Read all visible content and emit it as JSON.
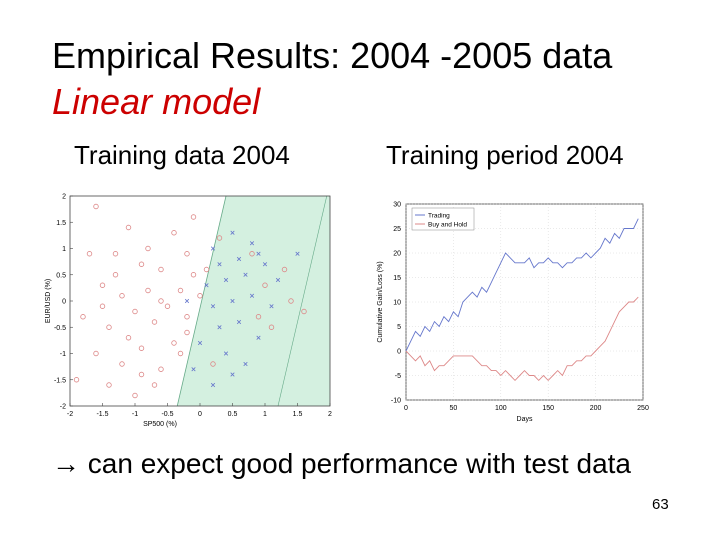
{
  "slide": {
    "title": "Empirical Results: 2004 -2005 data",
    "subtitle": "Linear model",
    "left_label": "Training data 2004",
    "right_label": "Training period 2004",
    "conclusion": "→ can expect good performance with test data",
    "page_number": "63"
  },
  "colors": {
    "subtitle": "#cc0000",
    "region": "#d4f0e0",
    "trading": "#6677cc",
    "buyhold": "#dd8888"
  },
  "chart_data": [
    {
      "type": "scatter",
      "title": "",
      "xlabel": "SP500 (%)",
      "ylabel": "EUR/USD (%)",
      "xlim": [
        -2,
        2
      ],
      "ylim": [
        -2,
        2
      ],
      "xticks": [
        "-2",
        "-1.5",
        "-1",
        "-0.5",
        "0",
        "0.5",
        "1",
        "1.5",
        "2"
      ],
      "yticks": [
        "-2",
        "-1.5",
        "-1",
        "-0.5",
        "0",
        "0.5",
        "1",
        "1.5",
        "2"
      ],
      "decision_boundary": [
        [
          -0.35,
          -2
        ],
        [
          0.4,
          2
        ]
      ],
      "second_boundary": [
        [
          1.2,
          -2
        ],
        [
          1.95,
          2
        ]
      ],
      "series": [
        {
          "marker": "circle",
          "color": "#dd8888",
          "points": [
            [
              -1.6,
              1.8
            ],
            [
              -1.1,
              1.4
            ],
            [
              -1.3,
              0.9
            ],
            [
              -0.9,
              0.7
            ],
            [
              -0.4,
              1.3
            ],
            [
              -0.2,
              0.9
            ],
            [
              -1.5,
              0.3
            ],
            [
              -1.2,
              0.1
            ],
            [
              -0.8,
              0.2
            ],
            [
              -0.6,
              0.6
            ],
            [
              -0.3,
              0.2
            ],
            [
              -0.1,
              0.5
            ],
            [
              -1.8,
              -0.3
            ],
            [
              -1.4,
              -0.5
            ],
            [
              -1.0,
              -0.2
            ],
            [
              -0.7,
              -0.4
            ],
            [
              -0.5,
              -0.1
            ],
            [
              -0.2,
              -0.6
            ],
            [
              -1.6,
              -1.0
            ],
            [
              -1.2,
              -1.2
            ],
            [
              -0.9,
              -0.9
            ],
            [
              -0.6,
              -1.3
            ],
            [
              -0.3,
              -1.0
            ],
            [
              -1.9,
              -1.5
            ],
            [
              -1.4,
              -1.6
            ],
            [
              -1.0,
              -1.8
            ],
            [
              -0.7,
              -1.6
            ],
            [
              0.0,
              0.1
            ],
            [
              0.1,
              0.6
            ],
            [
              0.3,
              1.2
            ],
            [
              -0.1,
              1.6
            ],
            [
              -1.7,
              0.9
            ],
            [
              -0.8,
              1.0
            ],
            [
              -1.1,
              -0.7
            ],
            [
              -0.4,
              -0.8
            ],
            [
              -1.3,
              0.5
            ],
            [
              -0.6,
              0.0
            ],
            [
              -0.2,
              -0.3
            ],
            [
              -1.5,
              -0.1
            ],
            [
              -0.9,
              -1.4
            ],
            [
              1.0,
              0.3
            ],
            [
              1.3,
              0.6
            ],
            [
              1.6,
              -0.2
            ],
            [
              1.1,
              -0.5
            ],
            [
              0.8,
              0.9
            ],
            [
              1.4,
              0.0
            ],
            [
              0.9,
              -0.3
            ],
            [
              0.2,
              -1.2
            ]
          ]
        },
        {
          "marker": "cross",
          "color": "#6677cc",
          "points": [
            [
              0.2,
              1.0
            ],
            [
              0.5,
              1.3
            ],
            [
              0.8,
              1.1
            ],
            [
              0.3,
              0.7
            ],
            [
              0.6,
              0.8
            ],
            [
              1.0,
              0.7
            ],
            [
              0.1,
              0.3
            ],
            [
              0.4,
              0.4
            ],
            [
              0.7,
              0.5
            ],
            [
              1.2,
              0.4
            ],
            [
              0.2,
              -0.1
            ],
            [
              0.5,
              0.0
            ],
            [
              0.8,
              0.1
            ],
            [
              1.1,
              -0.1
            ],
            [
              0.3,
              -0.5
            ],
            [
              0.6,
              -0.4
            ],
            [
              0.9,
              -0.7
            ],
            [
              0.0,
              -0.8
            ],
            [
              0.4,
              -1.0
            ],
            [
              0.7,
              -1.2
            ],
            [
              -0.1,
              -1.3
            ],
            [
              0.2,
              -1.6
            ],
            [
              1.5,
              0.9
            ],
            [
              -0.2,
              0.0
            ],
            [
              0.5,
              -1.4
            ],
            [
              0.9,
              0.9
            ]
          ]
        }
      ]
    },
    {
      "type": "line",
      "title": "",
      "xlabel": "Days",
      "ylabel": "Cumulative Gain/Loss (%)",
      "xlim": [
        0,
        250
      ],
      "ylim": [
        -10,
        30
      ],
      "xticks": [
        "0",
        "50",
        "100",
        "150",
        "200",
        "250"
      ],
      "yticks": [
        "-10",
        "-5",
        "0",
        "5",
        "10",
        "15",
        "20",
        "25",
        "30"
      ],
      "legend": "top-left",
      "series": [
        {
          "name": "Trading",
          "color": "#6677cc",
          "x": [
            0,
            5,
            10,
            15,
            20,
            25,
            30,
            35,
            40,
            45,
            50,
            55,
            60,
            65,
            70,
            75,
            80,
            85,
            90,
            95,
            100,
            105,
            110,
            115,
            120,
            125,
            130,
            135,
            140,
            145,
            150,
            155,
            160,
            165,
            170,
            175,
            180,
            185,
            190,
            195,
            200,
            205,
            210,
            215,
            220,
            225,
            230,
            235,
            240,
            245
          ],
          "y": [
            0,
            2,
            4,
            3,
            5,
            4,
            6,
            5,
            7,
            6,
            8,
            7,
            10,
            11,
            12,
            11,
            13,
            12,
            14,
            16,
            18,
            20,
            19,
            18,
            18,
            18,
            19,
            17,
            18,
            18,
            19,
            18,
            18,
            17,
            18,
            18,
            19,
            19,
            20,
            19,
            20,
            21,
            23,
            22,
            24,
            23,
            25,
            25,
            25,
            27
          ]
        },
        {
          "name": "Buy and Hold",
          "color": "#dd8888",
          "x": [
            0,
            5,
            10,
            15,
            20,
            25,
            30,
            35,
            40,
            45,
            50,
            55,
            60,
            65,
            70,
            75,
            80,
            85,
            90,
            95,
            100,
            105,
            110,
            115,
            120,
            125,
            130,
            135,
            140,
            145,
            150,
            155,
            160,
            165,
            170,
            175,
            180,
            185,
            190,
            195,
            200,
            205,
            210,
            215,
            220,
            225,
            230,
            235,
            240,
            245
          ],
          "y": [
            0,
            -1,
            -2,
            -1,
            -3,
            -2,
            -4,
            -3,
            -3,
            -2,
            -1,
            -1,
            -1,
            -1,
            -1,
            -2,
            -3,
            -3,
            -4,
            -4,
            -5,
            -4,
            -5,
            -6,
            -5,
            -4,
            -5,
            -5,
            -6,
            -5,
            -6,
            -5,
            -4,
            -5,
            -3,
            -3,
            -2,
            -2,
            -1,
            -1,
            0,
            1,
            2,
            4,
            6,
            8,
            9,
            10,
            10,
            11
          ]
        }
      ]
    }
  ]
}
